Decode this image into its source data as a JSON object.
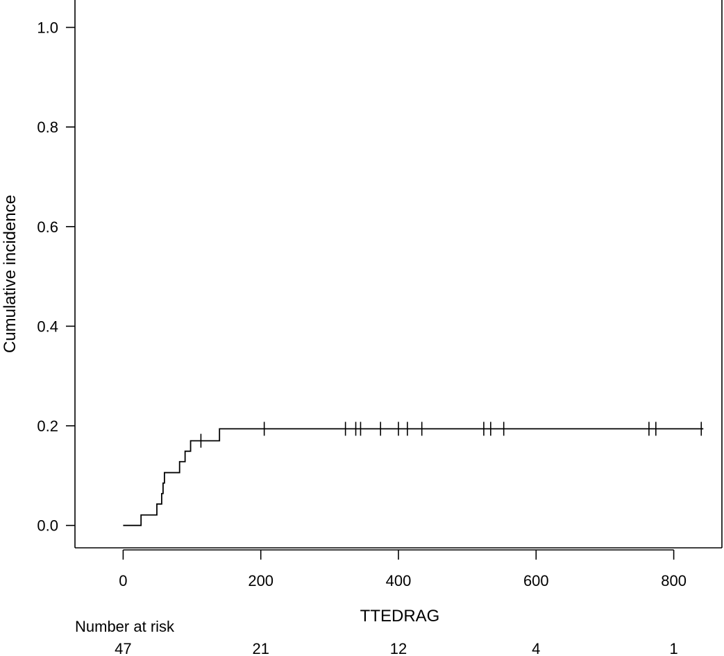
{
  "chart_data": {
    "type": "line",
    "xlabel": "TTEDRAG",
    "ylabel": "Cumulative incidence",
    "xlim": [
      -70,
      870
    ],
    "ylim": [
      -0.045,
      1.055
    ],
    "x_ticks": [
      0,
      200,
      400,
      600,
      800
    ],
    "x_tick_labels": [
      "0",
      "200",
      "400",
      "600",
      "800"
    ],
    "y_ticks": [
      0.0,
      0.2,
      0.4,
      0.6,
      0.8,
      1.0
    ],
    "y_tick_labels": [
      "0.0",
      "0.2",
      "0.4",
      "0.6",
      "0.8",
      "1.0"
    ],
    "grid": false,
    "series": [
      {
        "step_x": [
          0,
          26,
          49,
          56,
          58,
          60,
          82,
          90,
          98,
          104,
          140,
          843
        ],
        "step_y": [
          0.0,
          0.021,
          0.043,
          0.064,
          0.085,
          0.106,
          0.128,
          0.149,
          0.17,
          0.17,
          0.194,
          0.194
        ],
        "censor_x": [
          113,
          205,
          323,
          338,
          345,
          374,
          400,
          413,
          434,
          524,
          534,
          553,
          764,
          774,
          840
        ],
        "censor_y": [
          0.17,
          0.194,
          0.194,
          0.194,
          0.194,
          0.194,
          0.194,
          0.194,
          0.194,
          0.194,
          0.194,
          0.194,
          0.194,
          0.194,
          0.194
        ]
      }
    ],
    "risk_table": {
      "title": "Number at risk",
      "times": [
        0,
        200,
        400,
        600,
        800
      ],
      "counts": [
        "47",
        "21",
        "12",
        "4",
        "1"
      ]
    }
  }
}
